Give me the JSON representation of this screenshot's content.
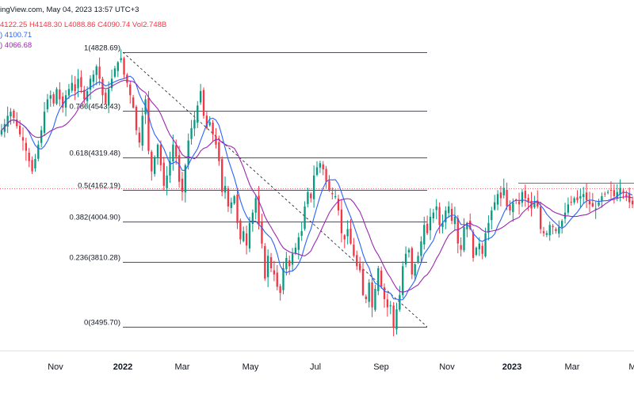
{
  "header": {
    "source_line": "ingView.com, May 04, 2023 13:57 UTC+3",
    "ohlc_line": "4122.25  H4148.30  L4088.86  C4090.74  Vol2.748B",
    "ma_fast": ")  4100.71",
    "ma_slow": ")  4066.68"
  },
  "colors": {
    "up": "#089981",
    "down": "#f23645",
    "ma_fast": "#2962ff",
    "ma_slow": "#9c27b0",
    "fib_line": "#131722",
    "trend_line": "#131722",
    "resistance": "#f23645",
    "price_line": "#f23645",
    "header_value": "#f23645"
  },
  "chart_data": {
    "type": "candlestick",
    "price_range": [
      3390,
      5010
    ],
    "fibonacci": [
      {
        "label": "1(4828.69)",
        "price": 4828.69
      },
      {
        "label": "0.786(4543.43)",
        "price": 4543.43
      },
      {
        "label": "0.618(4319.48)",
        "price": 4319.48
      },
      {
        "label": "0.5(4162.19)",
        "price": 4162.19
      },
      {
        "label": "0.382(4004.90)",
        "price": 4004.9
      },
      {
        "label": "0.236(3810.28)",
        "price": 3810.28
      },
      {
        "label": "0(3495.70)",
        "price": 3495.7
      }
    ],
    "resistance_level": 4195,
    "last_price": 4090.74,
    "x_ticks": [
      {
        "label": "Nov",
        "bold": false
      },
      {
        "label": "2022",
        "bold": true
      },
      {
        "label": "Mar",
        "bold": false
      },
      {
        "label": "May",
        "bold": false
      },
      {
        "label": "Jul",
        "bold": false
      },
      {
        "label": "Sep",
        "bold": false
      },
      {
        "label": "Nov",
        "bold": false
      },
      {
        "label": "2023",
        "bold": true
      },
      {
        "label": "Mar",
        "bold": false
      },
      {
        "label": "M",
        "bold": false
      }
    ],
    "trend_path": [
      {
        "date": "2022-01-04",
        "close": 4820
      },
      {
        "date": "2022-10-12",
        "close": 3495
      }
    ],
    "closes": [
      4450,
      4480,
      4520,
      4540,
      4510,
      4470,
      4430,
      4400,
      4350,
      4300,
      4250,
      4310,
      4380,
      4450,
      4540,
      4600,
      4620,
      4580,
      4650,
      4600,
      4560,
      4620,
      4650,
      4680,
      4640,
      4700,
      4660,
      4600,
      4640,
      4700,
      4720,
      4760,
      4700,
      4620,
      4580,
      4650,
      4700,
      4750,
      4780,
      4800,
      4720,
      4680,
      4620,
      4560,
      4450,
      4390,
      4520,
      4600,
      4350,
      4250,
      4320,
      4380,
      4280,
      4180,
      4230,
      4300,
      4380,
      4320,
      4200,
      4150,
      4280,
      4400,
      4460,
      4500,
      4570,
      4640,
      4520,
      4460,
      4490,
      4430,
      4380,
      4300,
      4150,
      4180,
      4080,
      4100,
      4130,
      4000,
      3920,
      3960,
      3890,
      4000,
      4050,
      4120,
      3990,
      3900,
      3730,
      3840,
      3780,
      3750,
      3690,
      3660,
      3780,
      3830,
      3790,
      3850,
      3880,
      3930,
      3960,
      4080,
      4150,
      4120,
      4230,
      4270,
      4290,
      4260,
      4200,
      4160,
      4140,
      4130,
      4060,
      3950,
      3920,
      3970,
      3900,
      3840,
      3790,
      3770,
      3650,
      3630,
      3710,
      3590,
      3680,
      3780,
      3690,
      3630,
      3590,
      3600,
      3490,
      3580,
      3650,
      3790,
      3850,
      3870,
      3750,
      3800,
      3840,
      3910,
      3990,
      3950,
      4030,
      4050,
      4080,
      3990,
      4000,
      4060,
      4080,
      4010,
      4030,
      3900,
      3870,
      3980,
      4000,
      3970,
      3830,
      3880,
      3900,
      3850,
      3950,
      4000,
      4060,
      4100,
      4140,
      4120,
      4170,
      4080,
      4060,
      4100,
      4110,
      4090,
      4150,
      4120,
      4100,
      4070,
      4100,
      4080,
      3970,
      3950,
      3950,
      3990,
      3980,
      3960,
      3980,
      4010,
      4050,
      4090,
      4100,
      4120,
      4110,
      4130,
      4140,
      4110,
      4090,
      4080,
      4070,
      4100,
      4130,
      4140,
      4150,
      4160,
      4130,
      4150,
      4170,
      4150,
      4130,
      4100,
      4090
    ]
  }
}
